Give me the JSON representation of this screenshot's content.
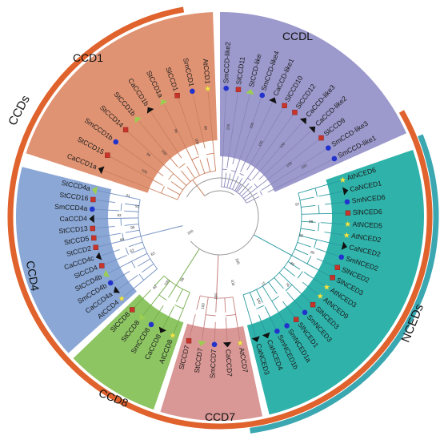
{
  "colors": {
    "ring_orange": "#e0622d",
    "ring_teal": "#3aa7b1",
    "species_Sl": "#c8342a",
    "species_Ca": "#111111",
    "species_Sm": "#2233cc",
    "species_At": "#f3e84a",
    "species_St": "#9bcd50"
  },
  "groups": [
    {
      "id": "ccds",
      "label": "CCDs"
    },
    {
      "id": "nceds",
      "label": "NCEDs"
    }
  ],
  "clades": [
    {
      "id": "ccd1",
      "label": "CCD1",
      "fill": "#e09373",
      "line": "#c9805f",
      "leaves": [
        {
          "name": "CaCCD1a",
          "marker": "triangle",
          "color": "#111111"
        },
        {
          "name": "StCCD15",
          "marker": "square",
          "color": "#c8342a"
        },
        {
          "name": "SmCCD1b",
          "marker": "circle",
          "color": "#2233cc"
        },
        {
          "name": "StCCD14",
          "marker": "square",
          "color": "#c8342a"
        },
        {
          "name": "StCCD1b",
          "marker": "triangle-green",
          "color": "#9bcd50"
        },
        {
          "name": "CaCCD1b",
          "marker": "triangle",
          "color": "#111111"
        },
        {
          "name": "StCCD1a",
          "marker": "triangle-green",
          "color": "#9bcd50"
        },
        {
          "name": "SlCCD1",
          "marker": "square",
          "color": "#c8342a"
        },
        {
          "name": "SmCCD1",
          "marker": "circle",
          "color": "#2233cc"
        },
        {
          "name": "AtCCD1",
          "marker": "star",
          "color": "#f3e84a"
        }
      ]
    },
    {
      "id": "ccdl",
      "label": "CCDL",
      "fill": "#9c99cc",
      "line": "#8a86bb",
      "leaves": [
        {
          "name": "SmCCD-like2",
          "marker": "circle",
          "color": "#2233cc"
        },
        {
          "name": "SlCCD11",
          "marker": "square",
          "color": "#c8342a"
        },
        {
          "name": "StCCD-like",
          "marker": "triangle-green",
          "color": "#9bcd50"
        },
        {
          "name": "SmCCD-like4",
          "marker": "circle",
          "color": "#2233cc"
        },
        {
          "name": "CaCCD-like1",
          "marker": "triangle",
          "color": "#111111"
        },
        {
          "name": "SlCCD10",
          "marker": "square",
          "color": "#c8342a"
        },
        {
          "name": "SlCCD12",
          "marker": "square",
          "color": "#c8342a"
        },
        {
          "name": "CaCCD-like3",
          "marker": "triangle",
          "color": "#111111"
        },
        {
          "name": "CaCCD-like2",
          "marker": "triangle",
          "color": "#111111"
        },
        {
          "name": "SlCCD9",
          "marker": "square",
          "color": "#c8342a"
        },
        {
          "name": "SmCCD-like3",
          "marker": "circle",
          "color": "#2233cc"
        },
        {
          "name": "SmCCD-like1",
          "marker": "circle",
          "color": "#2233cc"
        }
      ]
    },
    {
      "id": "nced",
      "label": "NCEDs",
      "fill": "#2eb2aa",
      "line": "#2b9aa0",
      "leaves": [
        {
          "name": "AtNCED6",
          "marker": "star",
          "color": "#f3e84a"
        },
        {
          "name": "CaNCED1",
          "marker": "triangle",
          "color": "#111111"
        },
        {
          "name": "SmNCED6",
          "marker": "circle",
          "color": "#2233cc"
        },
        {
          "name": "SlNCED6",
          "marker": "square",
          "color": "#c8342a"
        },
        {
          "name": "AtNCED5",
          "marker": "star",
          "color": "#f3e84a"
        },
        {
          "name": "AtNCED2",
          "marker": "star",
          "color": "#f3e84a"
        },
        {
          "name": "CaNCED2",
          "marker": "triangle",
          "color": "#111111"
        },
        {
          "name": "SmNCED2",
          "marker": "circle",
          "color": "#2233cc"
        },
        {
          "name": "SlNCED2",
          "marker": "square",
          "color": "#c8342a"
        },
        {
          "name": "SlNCED3",
          "marker": "square",
          "color": "#c8342a"
        },
        {
          "name": "AtNCED3",
          "marker": "star",
          "color": "#f3e84a"
        },
        {
          "name": "AtNCED9",
          "marker": "star",
          "color": "#f3e84a"
        },
        {
          "name": "SlNCED3",
          "marker": "square",
          "color": "#c8342a"
        },
        {
          "name": "SmNCED3",
          "marker": "circle",
          "color": "#2233cc"
        },
        {
          "name": "SlNCED1",
          "marker": "square",
          "color": "#c8342a"
        },
        {
          "name": "SmNCED1a",
          "marker": "circle",
          "color": "#2233cc"
        },
        {
          "name": "SmNCED1b",
          "marker": "circle",
          "color": "#2233cc"
        },
        {
          "name": "CaNCED4",
          "marker": "triangle",
          "color": "#111111"
        },
        {
          "name": "CaNCED3",
          "marker": "triangle",
          "color": "#111111"
        }
      ]
    },
    {
      "id": "ccd7",
      "label": "CCD7",
      "fill": "#d99795",
      "line": "#c37f7d",
      "leaves": [
        {
          "name": "AtCCD7",
          "marker": "star",
          "color": "#f3e84a"
        },
        {
          "name": "CaCCD7",
          "marker": "triangle",
          "color": "#111111"
        },
        {
          "name": "SmCCD7",
          "marker": "circle",
          "color": "#2233cc"
        },
        {
          "name": "StCCD7",
          "marker": "triangle-green",
          "color": "#9bcd50"
        },
        {
          "name": "SlCCD7",
          "marker": "square",
          "color": "#c8342a"
        }
      ]
    },
    {
      "id": "ccd8",
      "label": "CCD8",
      "fill": "#8dc563",
      "line": "#74ad4c",
      "leaves": [
        {
          "name": "AtCCD8",
          "marker": "star",
          "color": "#f3e84a"
        },
        {
          "name": "CaCCD8",
          "marker": "triangle",
          "color": "#111111"
        },
        {
          "name": "SmCCD8",
          "marker": "circle",
          "color": "#2233cc"
        },
        {
          "name": "StCCD8",
          "marker": "triangle-green",
          "color": "#9bcd50"
        },
        {
          "name": "SlCCD8",
          "marker": "square",
          "color": "#c8342a"
        }
      ]
    },
    {
      "id": "ccd4",
      "label": "CCD4",
      "fill": "#8aa7d6",
      "line": "#7390c2",
      "leaves": [
        {
          "name": "AtCCD4",
          "marker": "star",
          "color": "#f3e84a"
        },
        {
          "name": "CaCCD4a",
          "marker": "triangle",
          "color": "#111111"
        },
        {
          "name": "SmCCD4b",
          "marker": "circle",
          "color": "#2233cc"
        },
        {
          "name": "StCCD4b",
          "marker": "triangle-green",
          "color": "#9bcd50"
        },
        {
          "name": "SlCCD4",
          "marker": "square",
          "color": "#c8342a"
        },
        {
          "name": "CaCCD4c",
          "marker": "triangle",
          "color": "#111111"
        },
        {
          "name": "StCCD2",
          "marker": "square",
          "color": "#c8342a"
        },
        {
          "name": "StCCD5",
          "marker": "square",
          "color": "#c8342a"
        },
        {
          "name": "StCCD13",
          "marker": "square",
          "color": "#c8342a"
        },
        {
          "name": "CaCCD4",
          "marker": "triangle",
          "color": "#111111"
        },
        {
          "name": "SmCCD4a",
          "marker": "circle",
          "color": "#2233cc"
        },
        {
          "name": "StCCD16",
          "marker": "square",
          "color": "#c8342a"
        },
        {
          "name": "StCCD4a",
          "marker": "triangle-green",
          "color": "#9bcd50"
        }
      ]
    }
  ],
  "clade_labels": {
    "ccd1": "CCD1",
    "ccdl": "CCDL",
    "ccd4": "CCD4",
    "ccd7": "CCD7",
    "ccd8": "CCD8"
  },
  "bootstrap_values": [
    "100",
    "99",
    "100",
    "95",
    "100",
    "99",
    "100",
    "100",
    "100",
    "100",
    "100",
    "100",
    "87",
    "86",
    "98",
    "95",
    "83",
    "76",
    "72",
    "100",
    "63",
    "62",
    "99",
    "95",
    "63",
    "51",
    "41",
    "96",
    "100",
    "92",
    "100",
    "100",
    "100",
    "100",
    "100"
  ]
}
